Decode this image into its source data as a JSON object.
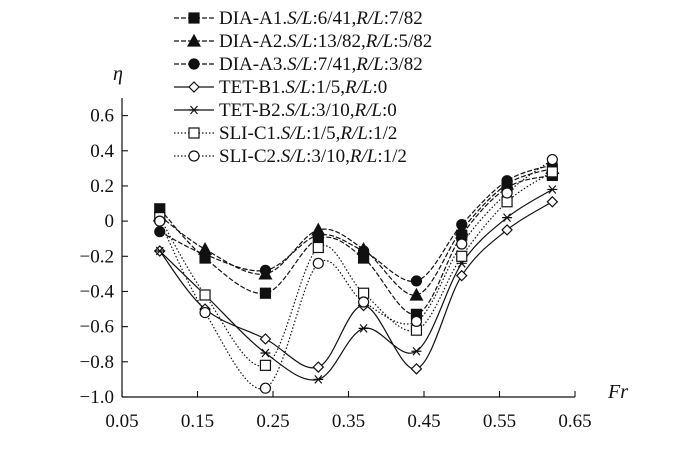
{
  "chart_data": {
    "type": "line",
    "xlabel": "Fr",
    "ylabel": "η",
    "xlim": [
      0.05,
      0.65
    ],
    "ylim": [
      -1.0,
      0.7
    ],
    "x_ticks": [
      "0.05",
      "0.15",
      "0.25",
      "0.35",
      "0.45",
      "0.55",
      "0.65"
    ],
    "y_ticks": [
      "0.6",
      "0.4",
      "0.2",
      "0",
      "−0.2",
      "−0.4",
      "−0.6",
      "−0.8",
      "−1.0"
    ],
    "x": [
      0.1,
      0.16,
      0.24,
      0.31,
      0.37,
      0.44,
      0.5,
      0.56,
      0.62
    ],
    "legend_position": "top-center",
    "series": [
      {
        "name": "DIA-A1.S/L:6/41,R/L:7/82",
        "name_parts": [
          "DIA-A1.",
          "S/L",
          ":6/41,",
          "R/L",
          ":7/82"
        ],
        "marker": "square-filled",
        "dash": "dashed",
        "values": [
          0.07,
          -0.21,
          -0.41,
          -0.1,
          -0.21,
          -0.53,
          -0.08,
          0.19,
          0.26
        ]
      },
      {
        "name": "DIA-A2.S/L:13/82,R/L:5/82",
        "name_parts": [
          "DIA-A2.",
          "S/L",
          ":13/82,",
          "R/L",
          ":5/82"
        ],
        "marker": "triangle-filled",
        "dash": "dashed",
        "values": [
          0.03,
          -0.16,
          -0.3,
          -0.05,
          -0.16,
          -0.42,
          -0.05,
          0.21,
          0.3
        ]
      },
      {
        "name": "DIA-A3.S/L:7/41,R/L:3/82",
        "name_parts": [
          "DIA-A3.",
          "S/L",
          ":7/41,",
          "R/L",
          ":3/82"
        ],
        "marker": "circle-filled",
        "dash": "dashed",
        "values": [
          -0.06,
          -0.19,
          -0.28,
          -0.08,
          -0.17,
          -0.34,
          -0.02,
          0.23,
          0.32
        ]
      },
      {
        "name": "TET-B1.S/L:1/5,R/L:0",
        "name_parts": [
          "TET-B1.",
          "S/L",
          ":1/5,",
          "R/L",
          ":0"
        ],
        "marker": "diamond-open",
        "dash": "solid",
        "values": [
          -0.17,
          -0.5,
          -0.67,
          -0.83,
          -0.48,
          -0.84,
          -0.31,
          -0.05,
          0.11
        ]
      },
      {
        "name": "TET-B2.S/L:3/10,R/L:0",
        "name_parts": [
          "TET-B2.",
          "S/L",
          ":3/10,",
          "R/L",
          ":0"
        ],
        "marker": "star",
        "dash": "solid",
        "values": [
          -0.17,
          -0.42,
          -0.75,
          -0.9,
          -0.61,
          -0.74,
          -0.24,
          0.02,
          0.18
        ]
      },
      {
        "name": "SLI-C1.S/L:1/5,R/L:1/2",
        "name_parts": [
          "SLI-C1.",
          "S/L",
          ":1/5,",
          "R/L",
          ":1/2"
        ],
        "marker": "square-open",
        "dash": "dotted",
        "values": [
          0.02,
          -0.42,
          -0.82,
          -0.15,
          -0.41,
          -0.62,
          -0.2,
          0.11,
          0.28
        ]
      },
      {
        "name": "SLI-C2.S/L:3/10,R/L:1/2",
        "name_parts": [
          "SLI-C2.",
          "S/L",
          ":3/10,",
          "R/L",
          ":1/2"
        ],
        "marker": "circle-open",
        "dash": "dotted",
        "values": [
          0.0,
          -0.52,
          -0.95,
          -0.24,
          -0.46,
          -0.57,
          -0.13,
          0.16,
          0.35
        ]
      }
    ]
  }
}
